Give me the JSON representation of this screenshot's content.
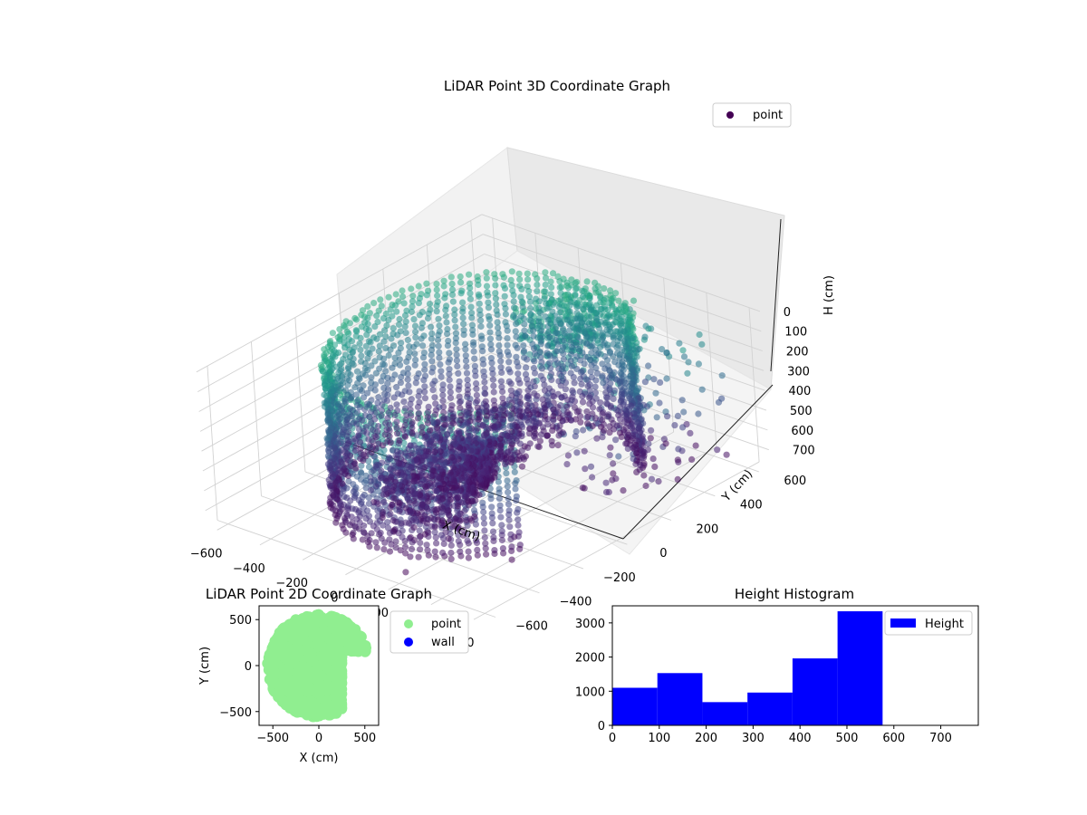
{
  "chart_data": [
    {
      "type": "scatter3d",
      "title": "LiDAR Point 3D Coordinate Graph",
      "xlabel": "X (cm)",
      "ylabel": "Y (cm)",
      "zlabel": "H (cm)",
      "x_ticks": [
        -600,
        -400,
        -200,
        0,
        200,
        400,
        600
      ],
      "y_ticks": [
        -600,
        -400,
        -200,
        0,
        200,
        400,
        600
      ],
      "z_ticks": [
        0,
        100,
        200,
        300,
        400,
        500,
        600,
        700
      ],
      "xlim": [
        -650,
        650
      ],
      "ylim": [
        -650,
        650
      ],
      "zlim": [
        780,
        0
      ],
      "z_inverted": true,
      "colormap": "viridis",
      "legend": {
        "position": "top-right",
        "entries": [
          {
            "label": "point",
            "color": "#440154"
          }
        ]
      },
      "grid": true,
      "description_points": "dense curved wall of points roughly radius 500 cm around origin, heights 0–700 cm"
    },
    {
      "type": "scatter",
      "title": "LiDAR Point 2D Coordinate Graph",
      "xlabel": "X (cm)",
      "ylabel": "Y (cm)",
      "x_ticks": [
        -500,
        0,
        500
      ],
      "y_ticks": [
        -500,
        0,
        500
      ],
      "xlim": [
        -650,
        650
      ],
      "ylim": [
        -650,
        650
      ],
      "legend": {
        "position": "outside-right",
        "entries": [
          {
            "label": "point",
            "color": "#90ee90"
          },
          {
            "label": "wall",
            "color": "#0000ff"
          }
        ]
      }
    },
    {
      "type": "bar",
      "title": "Height Histogram",
      "series": [
        {
          "name": "Height",
          "color": "#0000ff"
        }
      ],
      "bins": [
        {
          "from": 0,
          "to": 96,
          "count": 1100
        },
        {
          "from": 96,
          "to": 192,
          "count": 1530
        },
        {
          "from": 192,
          "to": 288,
          "count": 680
        },
        {
          "from": 288,
          "to": 384,
          "count": 960
        },
        {
          "from": 384,
          "to": 480,
          "count": 1960
        },
        {
          "from": 480,
          "to": 576,
          "count": 3340
        }
      ],
      "x_ticks": [
        0,
        100,
        200,
        300,
        400,
        500,
        600,
        700
      ],
      "y_ticks": [
        0,
        1000,
        2000,
        3000
      ],
      "xlim": [
        0,
        780
      ],
      "ylim": [
        0,
        3500
      ],
      "legend": {
        "position": "top-right",
        "entries": [
          {
            "label": "Height",
            "color": "#0000ff"
          }
        ]
      }
    }
  ]
}
